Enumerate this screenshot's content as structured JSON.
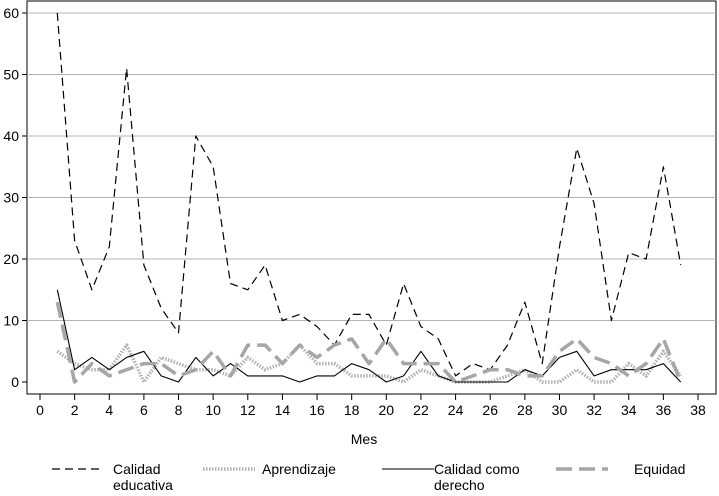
{
  "chart_data": {
    "type": "line",
    "title": "",
    "xlabel": "Mes",
    "ylabel": "",
    "xlim": [
      0,
      38
    ],
    "ylim": [
      0,
      60
    ],
    "xticks": [
      0,
      2,
      4,
      6,
      8,
      10,
      12,
      14,
      16,
      18,
      20,
      22,
      24,
      26,
      28,
      30,
      32,
      34,
      36,
      38
    ],
    "yticks": [
      0,
      10,
      20,
      30,
      40,
      50,
      60
    ],
    "grid": "horizontal",
    "legend_position": "bottom",
    "x": [
      1,
      2,
      3,
      4,
      5,
      6,
      7,
      8,
      9,
      10,
      11,
      12,
      13,
      14,
      15,
      16,
      17,
      18,
      19,
      20,
      21,
      22,
      23,
      24,
      25,
      26,
      27,
      28,
      29,
      30,
      31,
      32,
      33,
      34,
      35,
      36,
      37
    ],
    "series": [
      {
        "name": "Calidad educativa",
        "style": "dashed",
        "color": "#000000",
        "values": [
          60,
          23,
          15,
          22,
          51,
          19,
          12,
          8,
          40,
          35,
          16,
          15,
          19,
          10,
          11,
          9,
          6,
          11,
          11,
          6,
          16,
          9,
          7,
          1,
          3,
          2,
          6,
          13,
          3,
          22,
          38,
          29,
          10,
          21,
          20,
          35,
          19
        ]
      },
      {
        "name": "Aprendizaje",
        "style": "dotted",
        "color": "#aaaaaa",
        "values": [
          5,
          3,
          2,
          2,
          6,
          0,
          4,
          3,
          2,
          2,
          1,
          4,
          2,
          3,
          6,
          3,
          3,
          1,
          1,
          1,
          0,
          2,
          1,
          0,
          0,
          0,
          1,
          2,
          0,
          0,
          2,
          0,
          0,
          3,
          1,
          5,
          1
        ]
      },
      {
        "name": "Calidad como derecho",
        "style": "solid",
        "color": "#000000",
        "values": [
          15,
          2,
          4,
          2,
          4,
          5,
          1,
          0,
          4,
          1,
          3,
          1,
          1,
          1,
          0,
          1,
          1,
          3,
          2,
          0,
          1,
          5,
          1,
          0,
          0,
          0,
          0,
          2,
          1,
          4,
          5,
          1,
          2,
          2,
          2,
          3,
          0
        ]
      },
      {
        "name": "Equidad",
        "style": "long-dashed",
        "color": "#a6a6a6",
        "values": [
          13,
          0,
          3,
          1,
          2,
          3,
          3,
          1,
          2,
          5,
          1,
          6,
          6,
          3,
          6,
          4,
          6,
          7,
          3,
          7,
          3,
          3,
          3,
          0,
          1,
          2,
          2,
          1,
          1,
          5,
          7,
          4,
          3,
          1,
          3,
          7,
          0
        ]
      }
    ],
    "legend": {
      "entries": [
        {
          "line1": "Calidad",
          "line2": "educativa"
        },
        {
          "line1": "Aprendizaje",
          "line2": ""
        },
        {
          "line1": "Calidad como",
          "line2": "derecho"
        },
        {
          "line1": "Equidad",
          "line2": ""
        }
      ]
    }
  }
}
